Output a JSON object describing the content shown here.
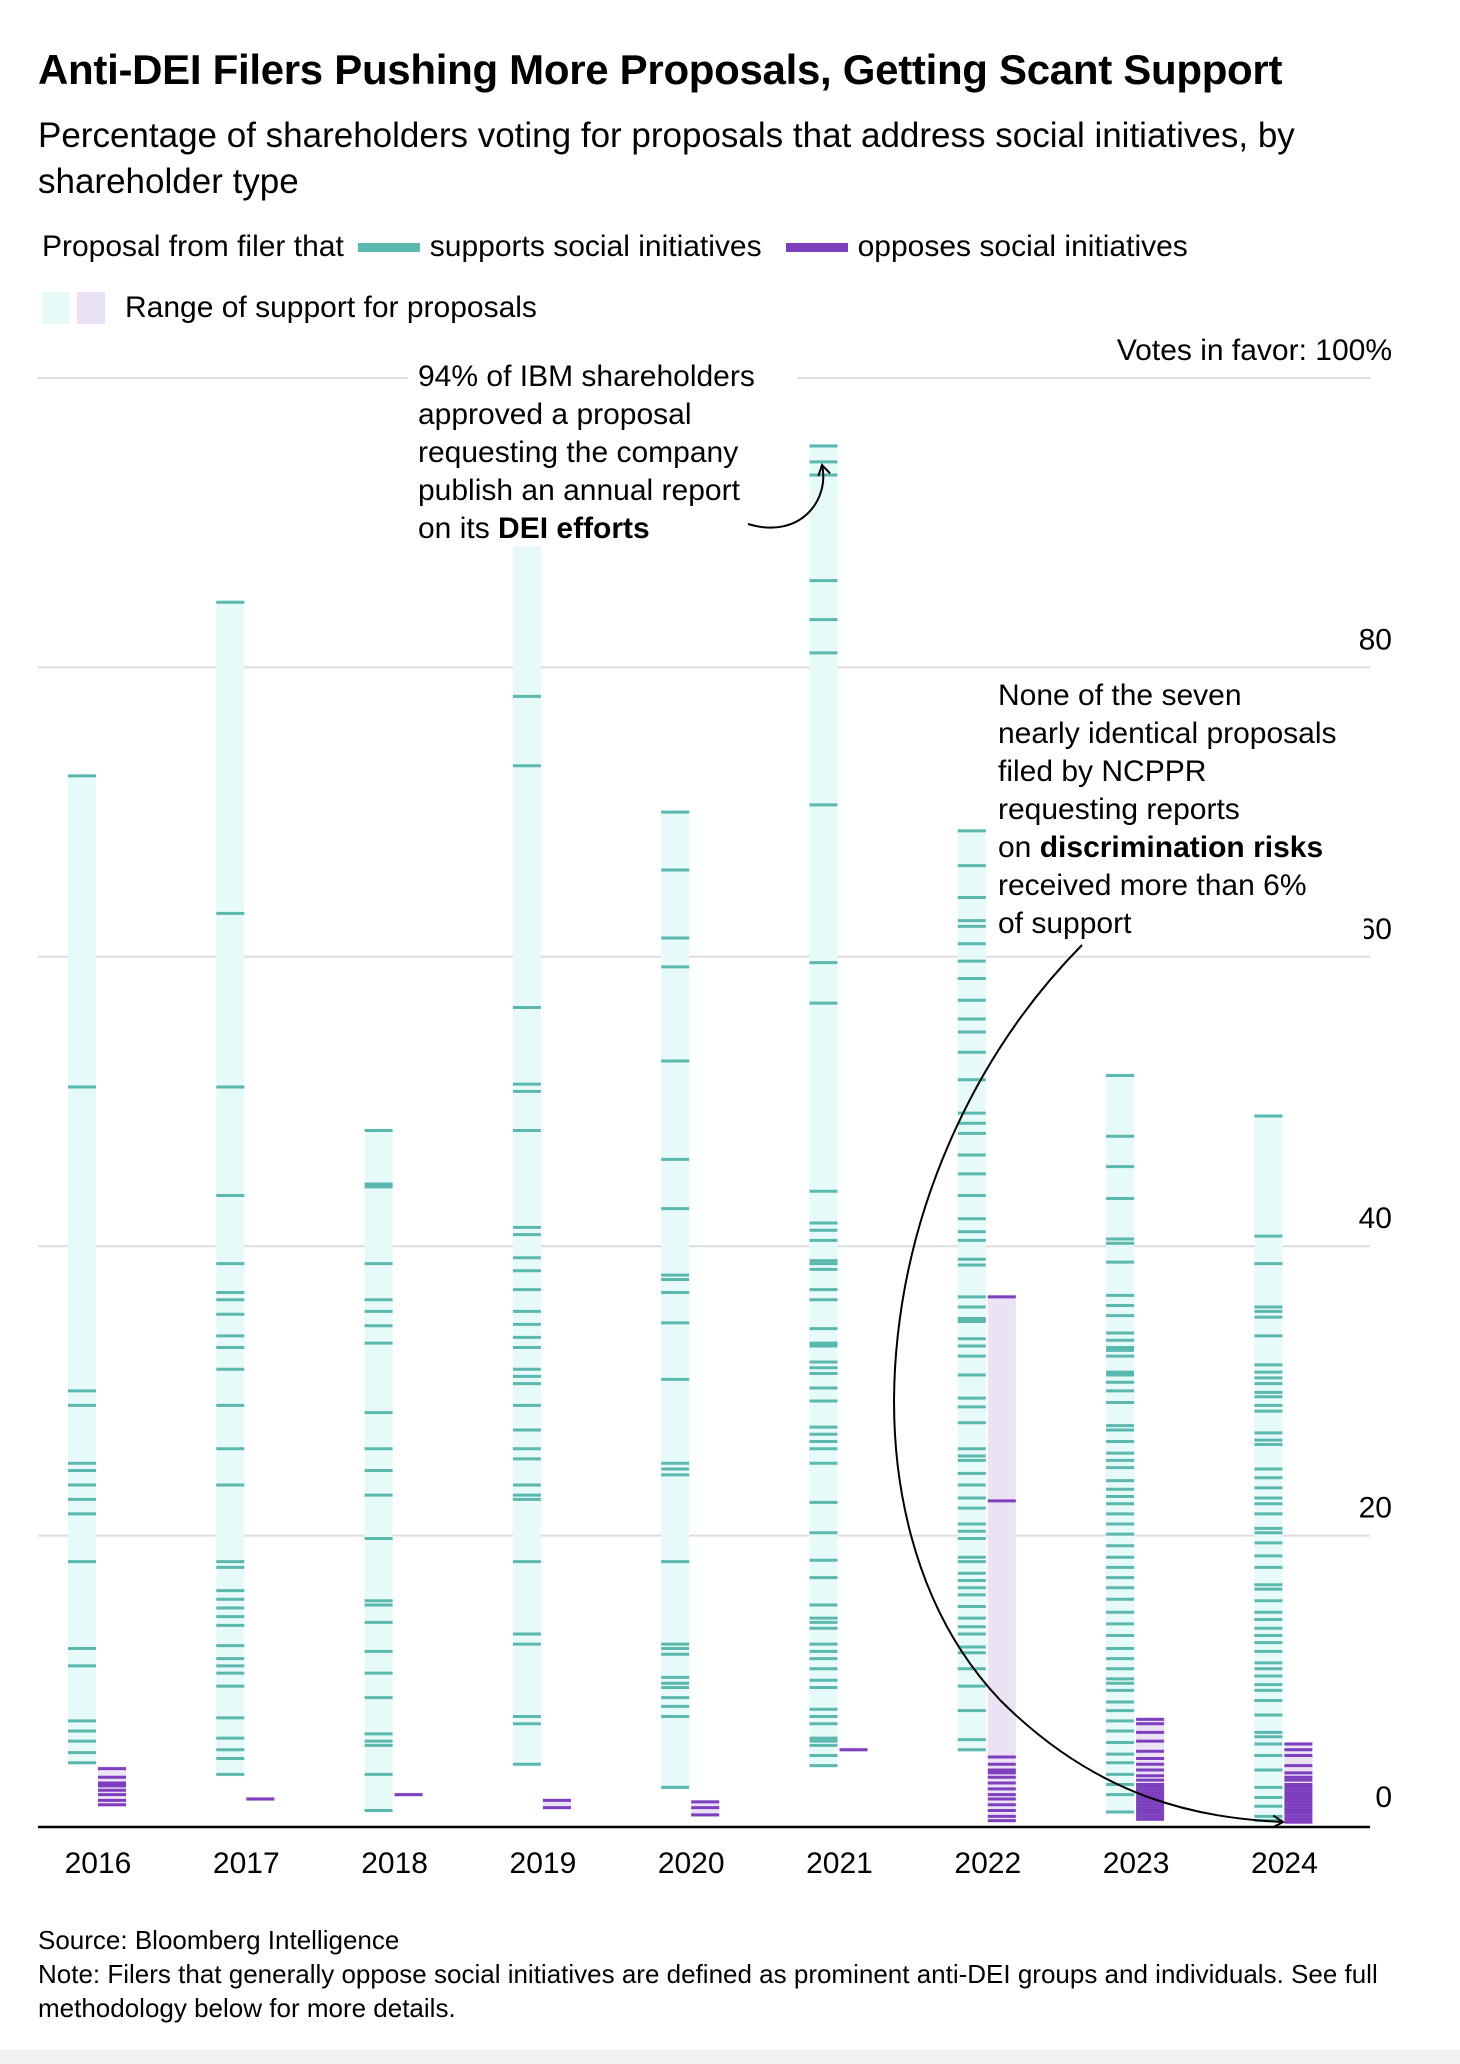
{
  "title": "Anti-DEI Filers Pushing More Proposals, Getting Scant Support",
  "subtitle": "Percentage of shareholders voting for proposals that address social initiatives, by shareholder type",
  "legend": {
    "prefix": "Proposal from filer that",
    "supports_label": "supports social initiatives",
    "opposes_label": "opposes social initiatives",
    "range_label": "Range of support for proposals"
  },
  "colors": {
    "supports": "#5bb8ae",
    "opposes": "#7e3fbf",
    "supports_range": "#e6faf9",
    "opposes_range": "#ece2f5",
    "grid": "#dddddd",
    "axis": "#000000"
  },
  "annotations": {
    "ibm": {
      "lines": [
        "94% of IBM shareholders",
        "approved a proposal",
        "requesting the company",
        "publish an annual report"
      ],
      "last_prefix": "on its ",
      "last_bold": "DEI efforts"
    },
    "ncppr": {
      "lines": [
        "None of the seven",
        "nearly identical proposals",
        "filed by NCPPR",
        "requesting reports"
      ],
      "bold_prefix": "on ",
      "bold": "discrimination risks",
      "tail": [
        "received more than 6%",
        "of support"
      ]
    }
  },
  "chart_data": {
    "type": "scatter",
    "title": "Anti-DEI Filers Pushing More Proposals, Getting Scant Support",
    "ylabel": "Votes in favor",
    "ylim": [
      0,
      100
    ],
    "y_ticks": [
      0,
      20,
      40,
      60,
      80,
      100
    ],
    "y_tick_labels": [
      "0",
      "20",
      "40",
      "60",
      "80",
      "Votes in favor: 100%"
    ],
    "categories": [
      "2016",
      "2017",
      "2018",
      "2019",
      "2020",
      "2021",
      "2022",
      "2023",
      "2024"
    ],
    "grid": true,
    "series": [
      {
        "name": "supports social initiatives",
        "values": [
          [
            72.5,
            51,
            30,
            29,
            25,
            24.5,
            23.5,
            22.5,
            21.5,
            18.2,
            12.2,
            11,
            7.2,
            6.5,
            5.8,
            5,
            4.3
          ],
          [
            84.5,
            63,
            51,
            43.5,
            38.8,
            36.8,
            36.3,
            35.3,
            33.8,
            33,
            31.5,
            29,
            26,
            23.5,
            18.2,
            17.8,
            16.2,
            15.6,
            15,
            14.4,
            13.8,
            12.4,
            11.5,
            11,
            10.5,
            9.6,
            7.4,
            6,
            5.2,
            4.6,
            3.5
          ],
          [
            48,
            44.3,
            44.1,
            38.8,
            36.3,
            35.5,
            34.5,
            33.3,
            28.5,
            26,
            24.5,
            22.8,
            19.8,
            15.5,
            15.2,
            14,
            12,
            10.5,
            8.8,
            6.3,
            5.8,
            5.5,
            3.5,
            1
          ],
          [
            88.8,
            78,
            73.2,
            56.5,
            51.2,
            50.7,
            48,
            41.3,
            40.8,
            39.2,
            38.3,
            37,
            35.5,
            34.6,
            33.7,
            33,
            31.5,
            31,
            30.5,
            29,
            27.3,
            26,
            25.3,
            23.5,
            22.8,
            22.5,
            18.2,
            13.2,
            12.5,
            7.5,
            7,
            4.2
          ],
          [
            70,
            66,
            61.3,
            59.3,
            52.8,
            46,
            42.6,
            38,
            37.7,
            36.8,
            34.7,
            30.8,
            25,
            24.6,
            24.2,
            18.2,
            12.5,
            12.2,
            11.8,
            10.2,
            9.8,
            9.5,
            8.8,
            8.2,
            7.5,
            2.6
          ],
          [
            95.3,
            94.2,
            93.3,
            86,
            83.3,
            81,
            70.5,
            59.6,
            56.8,
            43.8,
            41.6,
            41.1,
            40.4,
            39,
            38.8,
            38.4,
            37,
            36.3,
            34.3,
            33.3,
            33.1,
            32,
            31.6,
            31.2,
            30.2,
            29.3,
            27.5,
            27,
            26.5,
            26,
            25,
            22.3,
            20.2,
            18.3,
            17.1,
            15.2,
            14.3,
            14,
            13.6,
            12.5,
            12,
            11.5,
            10.8,
            10,
            9.5,
            8,
            7.5,
            7,
            6,
            5.8,
            5.5,
            4.8,
            4.1
          ],
          [
            68.7,
            66.3,
            64.1,
            62.5,
            62.1,
            60.9,
            59.7,
            58.5,
            57,
            55.7,
            54.8,
            53.4,
            51.5,
            49.2,
            48.5,
            47.8,
            46.3,
            45,
            43.5,
            41.9,
            41,
            40.4,
            39.1,
            38.7,
            36.5,
            35.8,
            35,
            34.8,
            33.6,
            33.1,
            32.4,
            31.1,
            29.5,
            28.9,
            27.8,
            26,
            25.5,
            25.2,
            24.3,
            23.5,
            22.6,
            21.9,
            20.8,
            20.3,
            19.8,
            18.5,
            18.2,
            17.4,
            16.9,
            16.4,
            15.9,
            15.1,
            14.3,
            13.7,
            13.2,
            12.3,
            11.9,
            10.8,
            9.6,
            7.9,
            5.9,
            5.2
          ],
          [
            51.8,
            47.6,
            45.5,
            43.3,
            40.5,
            40.2,
            38.9,
            36.6,
            35.9,
            35.2,
            34,
            33.5,
            33,
            32.8,
            32.4,
            31.3,
            31.1,
            30.6,
            30,
            29.2,
            27.6,
            27.3,
            26.5,
            25.7,
            25.2,
            24.7,
            23.8,
            23.2,
            22.7,
            22.2,
            21.5,
            20.8,
            20.1,
            19.3,
            18.5,
            17.8,
            17.1,
            16.4,
            15.6,
            14.7,
            13.9,
            13.1,
            12.2,
            11.5,
            10.8,
            10.1,
            9.8,
            9.3,
            8.5,
            7.9,
            7.2,
            6.5,
            5.7,
            4.9,
            4.3,
            3.5,
            2.8,
            2.1,
            0.9
          ],
          [
            49,
            40.7,
            38.8,
            35.8,
            35.5,
            35.1,
            33.8,
            31.8,
            31.3,
            30.9,
            30.5,
            29.9,
            29.6,
            29,
            28.6,
            27.1,
            26.6,
            26.3,
            24.6,
            24,
            23.3,
            22.6,
            22.2,
            21.5,
            20.5,
            20.2,
            19.5,
            18.6,
            17.8,
            16.6,
            16.3,
            15.5,
            14.7,
            14.2,
            13.6,
            13.1,
            12.6,
            12,
            11.2,
            10.8,
            10.3,
            9.7,
            9.3,
            8.6,
            7.6,
            6.4,
            6.1,
            5.6,
            4.8,
            3.8,
            2.6,
            1.9,
            1.3,
            0.6,
            0.3
          ]
        ]
      },
      {
        "name": "opposes social initiatives",
        "values": [
          [
            3.9,
            3.3,
            2.9,
            2.7,
            2.4,
            2.1,
            1.7,
            1.4
          ],
          [
            1.8
          ],
          [
            2.1
          ],
          [
            1.7,
            1.2
          ],
          [
            1.6,
            1.2,
            0.7
          ],
          [
            5.2
          ],
          [
            36.5,
            22.4,
            4.7,
            4.2,
            3.8,
            3.6,
            3.3,
            2.9,
            2.5,
            2.1,
            1.8,
            1.4,
            1,
            0.6,
            0.3
          ],
          [
            7.3,
            7,
            6.4,
            5.8,
            5.1,
            4.6,
            4.2,
            3.8,
            3.4,
            3.1,
            2.8,
            2.6,
            2.4,
            2.2,
            2,
            1.8,
            1.6,
            1.4,
            1.2,
            1,
            0.8,
            0.6,
            0.4
          ],
          [
            5.6,
            5.2,
            4.8,
            4.1,
            3.6,
            3.3,
            3.1,
            2.8,
            2.6,
            2.4,
            2.2,
            2,
            1.8,
            1.6,
            1.4,
            1.2,
            1,
            0.8,
            0.6,
            0.4,
            0.2
          ]
        ]
      }
    ]
  },
  "source": "Source: Bloomberg Intelligence",
  "note": "Note: Filers that generally oppose social initiatives are defined as prominent anti-DEI groups and individuals. See full methodology below for more details."
}
